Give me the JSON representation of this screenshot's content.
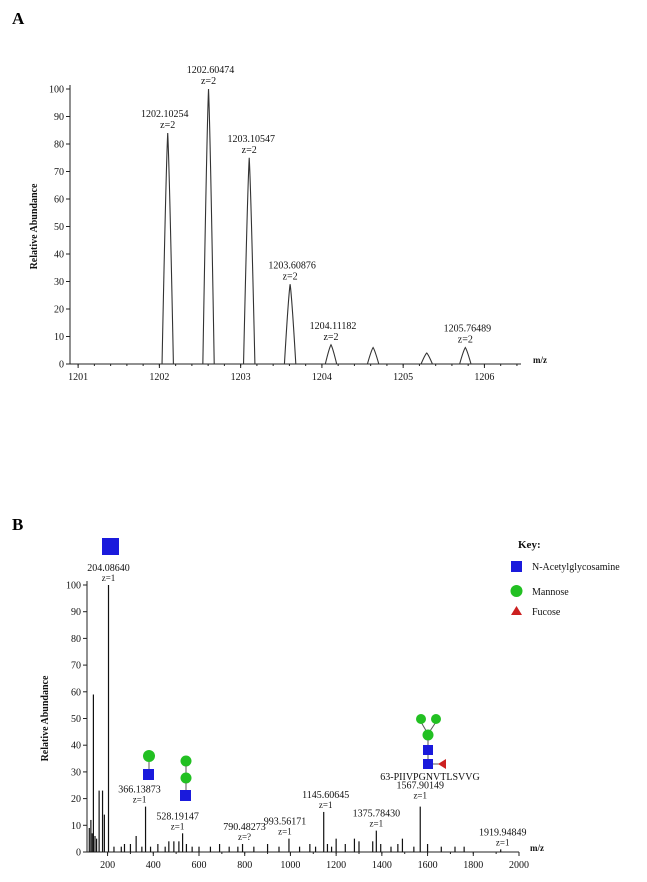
{
  "panels": {
    "a": "A",
    "b": "B"
  },
  "chart_data": [
    {
      "type": "line",
      "ylabel": "Relative Abundance",
      "xlabel": "m/z",
      "xlim": [
        1200.9,
        1206.45
      ],
      "ylim": [
        0,
        100
      ],
      "xticks": [
        1201,
        1202,
        1203,
        1204,
        1205,
        1206
      ],
      "yticks": [
        0,
        10,
        20,
        30,
        40,
        50,
        60,
        70,
        80,
        90,
        100
      ],
      "peaks": [
        {
          "x": 1202.10254,
          "y": 84,
          "label": "1202.10254",
          "charge": "z=2"
        },
        {
          "x": 1202.60474,
          "y": 100,
          "label": "1202.60474",
          "charge": "z=2"
        },
        {
          "x": 1203.10547,
          "y": 75,
          "label": "1203.10547",
          "charge": "z=2"
        },
        {
          "x": 1203.60876,
          "y": 29,
          "label": "1203.60876",
          "charge": "z=2"
        },
        {
          "x": 1204.11182,
          "y": 7,
          "label": "1204.11182",
          "charge": "z=2"
        },
        {
          "x": 1204.63,
          "y": 6,
          "label": "",
          "charge": ""
        },
        {
          "x": 1205.29,
          "y": 4,
          "label": "",
          "charge": ""
        },
        {
          "x": 1205.76489,
          "y": 6,
          "label": "1205.76489",
          "charge": "z=2"
        }
      ]
    },
    {
      "type": "bar",
      "ylabel": "Relative Abundance",
      "xlabel": "m/z",
      "xlim": [
        110,
        2000
      ],
      "ylim": [
        0,
        100
      ],
      "xticks": [
        200,
        400,
        600,
        800,
        1000,
        1200,
        1400,
        1600,
        1800,
        2000
      ],
      "yticks": [
        0,
        10,
        20,
        30,
        40,
        50,
        60,
        70,
        80,
        90,
        100
      ],
      "sticks": [
        {
          "x": 120,
          "y": 9
        },
        {
          "x": 127,
          "y": 12
        },
        {
          "x": 133,
          "y": 7
        },
        {
          "x": 138,
          "y": 59
        },
        {
          "x": 145,
          "y": 6
        },
        {
          "x": 152,
          "y": 5
        },
        {
          "x": 163,
          "y": 23
        },
        {
          "x": 178,
          "y": 23
        },
        {
          "x": 186,
          "y": 14
        },
        {
          "x": 204.0864,
          "y": 100
        },
        {
          "x": 228,
          "y": 2
        },
        {
          "x": 260,
          "y": 2
        },
        {
          "x": 274,
          "y": 3
        },
        {
          "x": 300,
          "y": 3
        },
        {
          "x": 325,
          "y": 6
        },
        {
          "x": 350,
          "y": 2
        },
        {
          "x": 366.13873,
          "y": 17
        },
        {
          "x": 388,
          "y": 2
        },
        {
          "x": 420,
          "y": 3
        },
        {
          "x": 452,
          "y": 2
        },
        {
          "x": 468,
          "y": 4
        },
        {
          "x": 490,
          "y": 4
        },
        {
          "x": 512,
          "y": 4
        },
        {
          "x": 528.19147,
          "y": 7
        },
        {
          "x": 545,
          "y": 3
        },
        {
          "x": 570,
          "y": 2
        },
        {
          "x": 600,
          "y": 2
        },
        {
          "x": 650,
          "y": 2
        },
        {
          "x": 690,
          "y": 3
        },
        {
          "x": 732,
          "y": 2
        },
        {
          "x": 770,
          "y": 2
        },
        {
          "x": 790.48273,
          "y": 3
        },
        {
          "x": 840,
          "y": 2
        },
        {
          "x": 900,
          "y": 3
        },
        {
          "x": 950,
          "y": 2
        },
        {
          "x": 993.56171,
          "y": 5
        },
        {
          "x": 1040,
          "y": 2
        },
        {
          "x": 1085,
          "y": 3
        },
        {
          "x": 1110,
          "y": 2
        },
        {
          "x": 1145.60645,
          "y": 15
        },
        {
          "x": 1162,
          "y": 3
        },
        {
          "x": 1180,
          "y": 2
        },
        {
          "x": 1200,
          "y": 5
        },
        {
          "x": 1240,
          "y": 3
        },
        {
          "x": 1280,
          "y": 5
        },
        {
          "x": 1300,
          "y": 4
        },
        {
          "x": 1360,
          "y": 4
        },
        {
          "x": 1375.7843,
          "y": 8
        },
        {
          "x": 1395,
          "y": 3
        },
        {
          "x": 1440,
          "y": 2
        },
        {
          "x": 1470,
          "y": 3
        },
        {
          "x": 1490,
          "y": 5
        },
        {
          "x": 1540,
          "y": 2
        },
        {
          "x": 1567.90149,
          "y": 17
        },
        {
          "x": 1600,
          "y": 3
        },
        {
          "x": 1660,
          "y": 2
        },
        {
          "x": 1720,
          "y": 2
        },
        {
          "x": 1760,
          "y": 2
        },
        {
          "x": 1919.94849,
          "y": 1
        }
      ],
      "annotations": [
        {
          "x": 204.0864,
          "y": 100,
          "label": "204.08640",
          "charge": "z=1"
        },
        {
          "x": 366.13873,
          "y": 17,
          "label": "366.13873",
          "charge": "z=1"
        },
        {
          "x": 528.19147,
          "y": 7,
          "label": "528.19147",
          "charge": "z=1"
        },
        {
          "x": 790.48273,
          "y": 3,
          "label": "790.48273",
          "charge": "z=?"
        },
        {
          "x": 993.56171,
          "y": 5,
          "label": "993.56171",
          "charge": "z=1"
        },
        {
          "x": 1145.60645,
          "y": 15,
          "label": "1145.60645",
          "charge": "z=1"
        },
        {
          "x": 1375.7843,
          "y": 8,
          "label": "1375.78430",
          "charge": "z=1"
        },
        {
          "x": 1567.90149,
          "y": 17,
          "label": "1567.90149",
          "charge": "z=1"
        },
        {
          "x": 1919.94849,
          "y": 1,
          "label": "1919.94849",
          "charge": "z=1"
        }
      ],
      "peptide_label": "63-PIIVPGNVTLSVVG"
    }
  ],
  "key": {
    "title": "Key:",
    "items": [
      {
        "label": "N-Acetylglycosamine",
        "shape": "square",
        "color": "#1a1adc"
      },
      {
        "label": "Mannose",
        "shape": "circle",
        "color": "#22c022"
      },
      {
        "label": "Fucose",
        "shape": "triangle",
        "color": "#cc2020"
      }
    ]
  },
  "colors": {
    "glcnac": "#1a1adc",
    "mannose": "#22c022",
    "fucose": "#cc2020"
  }
}
